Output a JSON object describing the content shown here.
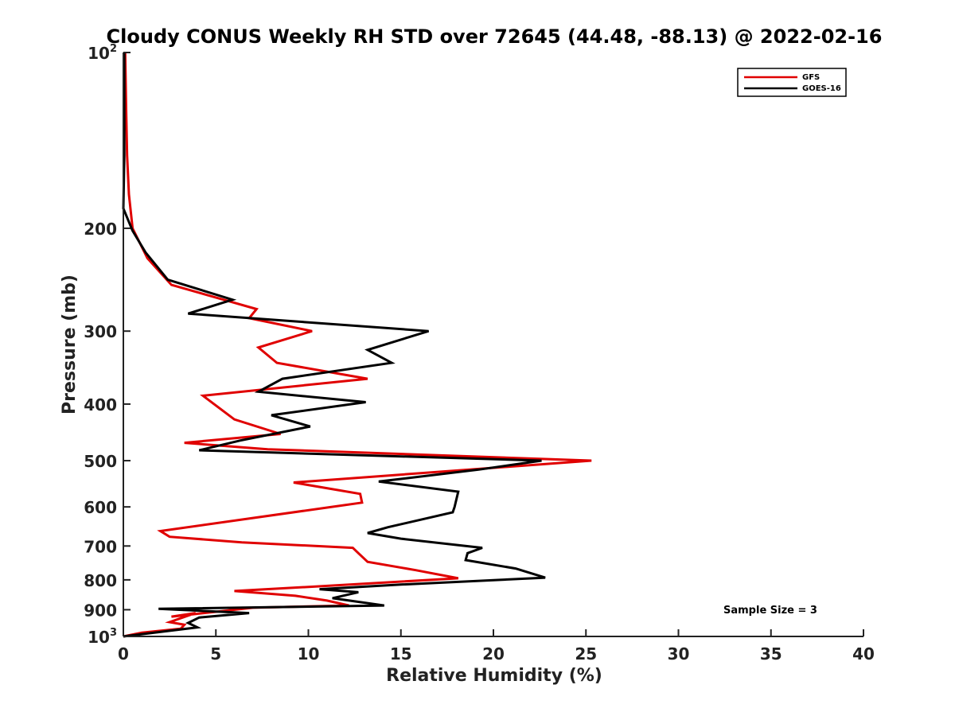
{
  "chart_data": {
    "type": "line",
    "title": "Cloudy CONUS Weekly RH STD over 72645 (44.48, -88.13) @ 2022-02-16",
    "xlabel": "Relative Humidity (%)",
    "ylabel": "Pressure (mb)",
    "xlim": [
      0,
      40
    ],
    "ylim": [
      1000,
      100
    ],
    "y_scale": "log",
    "y_reversed": true,
    "grid": false,
    "legend_position": "top-right",
    "x_ticks": [
      "0",
      "5",
      "10",
      "15",
      "20",
      "25",
      "30",
      "35",
      "40"
    ],
    "y_ticks": [
      {
        "value": 100,
        "base": "10",
        "exp": "2"
      },
      {
        "value": 200,
        "label": "200"
      },
      {
        "value": 300,
        "label": "300"
      },
      {
        "value": 400,
        "label": "400"
      },
      {
        "value": 500,
        "label": "500"
      },
      {
        "value": 600,
        "label": "600"
      },
      {
        "value": 700,
        "label": "700"
      },
      {
        "value": 800,
        "label": "800"
      },
      {
        "value": 900,
        "label": "900"
      },
      {
        "value": 1000,
        "base": "10",
        "exp": "3"
      }
    ],
    "annotation": "Sample Size = 3",
    "series": [
      {
        "name": "GFS",
        "color": "#e00000",
        "points": [
          [
            0.1,
            100
          ],
          [
            0.15,
            125
          ],
          [
            0.2,
            150
          ],
          [
            0.3,
            175
          ],
          [
            0.5,
            200
          ],
          [
            1.3,
            225
          ],
          [
            2.6,
            250
          ],
          [
            7.2,
            275
          ],
          [
            6.8,
            285
          ],
          [
            10.2,
            300
          ],
          [
            7.3,
            320
          ],
          [
            8.3,
            340
          ],
          [
            13.2,
            362
          ],
          [
            4.3,
            387
          ],
          [
            6.0,
            425
          ],
          [
            8.5,
            450
          ],
          [
            3.3,
            466
          ],
          [
            7.8,
            478
          ],
          [
            25.3,
            500
          ],
          [
            9.2,
            545
          ],
          [
            12.8,
            570
          ],
          [
            12.9,
            590
          ],
          [
            2.0,
            660
          ],
          [
            2.5,
            675
          ],
          [
            6.4,
            690
          ],
          [
            12.4,
            705
          ],
          [
            12.7,
            720
          ],
          [
            13.2,
            745
          ],
          [
            15.8,
            770
          ],
          [
            18.1,
            795
          ],
          [
            10.2,
            822
          ],
          [
            6.0,
            836
          ],
          [
            9.3,
            852
          ],
          [
            11.0,
            868
          ],
          [
            12.2,
            885
          ],
          [
            7.0,
            893
          ],
          [
            2.6,
            925
          ],
          [
            3.9,
            912
          ],
          [
            2.5,
            945
          ],
          [
            3.3,
            955
          ],
          [
            3.1,
            970
          ],
          [
            1.0,
            985
          ],
          [
            0.0,
            1000
          ]
        ]
      },
      {
        "name": "GOES-16",
        "color": "#000000",
        "points": [
          [
            0.05,
            100
          ],
          [
            0.05,
            125
          ],
          [
            0.05,
            150
          ],
          [
            0.0,
            185
          ],
          [
            0.5,
            202
          ],
          [
            1.2,
            220
          ],
          [
            2.4,
            245
          ],
          [
            5.9,
            265
          ],
          [
            3.5,
            280
          ],
          [
            16.5,
            300
          ],
          [
            13.2,
            323
          ],
          [
            14.5,
            340
          ],
          [
            8.6,
            362
          ],
          [
            7.3,
            381
          ],
          [
            13.1,
            397
          ],
          [
            8.0,
            418
          ],
          [
            10.1,
            437
          ],
          [
            6.3,
            462
          ],
          [
            4.1,
            480
          ],
          [
            22.6,
            500
          ],
          [
            19.2,
            518
          ],
          [
            13.8,
            543
          ],
          [
            18.1,
            565
          ],
          [
            17.9,
            600
          ],
          [
            17.8,
            613
          ],
          [
            14.3,
            650
          ],
          [
            13.2,
            665
          ],
          [
            15.0,
            680
          ],
          [
            19.4,
            705
          ],
          [
            18.6,
            720
          ],
          [
            18.5,
            740
          ],
          [
            21.2,
            765
          ],
          [
            22.8,
            793
          ],
          [
            15.0,
            815
          ],
          [
            10.6,
            830
          ],
          [
            12.7,
            840
          ],
          [
            11.3,
            860
          ],
          [
            14.1,
            885
          ],
          [
            1.9,
            897
          ],
          [
            6.8,
            912
          ],
          [
            4.1,
            928
          ],
          [
            3.5,
            948
          ],
          [
            4.0,
            965
          ],
          [
            0.0,
            1000
          ]
        ]
      }
    ]
  }
}
